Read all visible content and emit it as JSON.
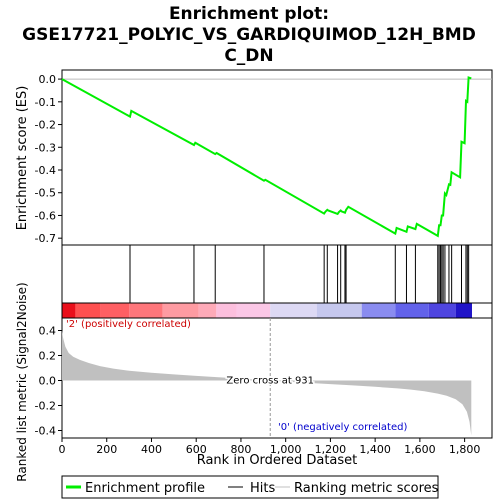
{
  "figure": {
    "title_line1": "Enrichment plot:",
    "title_line2": "GSE17721_POLYIC_VS_GARDIQUIMOD_12H_BMD",
    "title_line3": "C_DN"
  },
  "chart_data": [
    {
      "type": "line",
      "name": "enrichment-profile",
      "ylabel": "Enrichment score (ES)",
      "xlim": [
        0,
        1833
      ],
      "ylim": [
        -0.73,
        0.04
      ],
      "yticks": [
        0.0,
        -0.1,
        -0.2,
        -0.3,
        -0.4,
        -0.5,
        -0.6,
        -0.7
      ],
      "ytick_labels": [
        "0.0",
        "-0.1",
        "-0.2",
        "-0.3",
        "-0.4",
        "-0.5",
        "-0.6",
        "-0.7"
      ],
      "line_color": "#00ee00",
      "series": [
        {
          "name": "Enrichment profile",
          "x": [
            0,
            304,
            310,
            590,
            596,
            685,
            691,
            903,
            909,
            1172,
            1178,
            1186,
            1190,
            1232,
            1238,
            1246,
            1250,
            1265,
            1270,
            1280,
            1490,
            1496,
            1540,
            1546,
            1580,
            1586,
            1680,
            1686,
            1692,
            1698,
            1704,
            1712,
            1718,
            1730,
            1736,
            1742,
            1780,
            1786,
            1800,
            1806,
            1812,
            1818,
            1830
          ],
          "y": [
            0.0,
            -0.165,
            -0.14,
            -0.29,
            -0.28,
            -0.33,
            -0.325,
            -0.447,
            -0.443,
            -0.592,
            -0.583,
            -0.575,
            -0.578,
            -0.593,
            -0.585,
            -0.578,
            -0.582,
            -0.588,
            -0.575,
            -0.562,
            -0.68,
            -0.655,
            -0.672,
            -0.648,
            -0.66,
            -0.637,
            -0.69,
            -0.643,
            -0.643,
            -0.6,
            -0.6,
            -0.503,
            -0.51,
            -0.463,
            -0.465,
            -0.41,
            -0.432,
            -0.276,
            -0.282,
            -0.096,
            -0.1,
            0.007,
            0.003
          ]
        }
      ]
    },
    {
      "type": "scatter",
      "name": "hits",
      "xlim": [
        0,
        1833
      ],
      "hits": [
        304,
        590,
        685,
        903,
        1172,
        1186,
        1232,
        1246,
        1265,
        1270,
        1490,
        1540,
        1580,
        1680,
        1686,
        1692,
        1698,
        1704,
        1712,
        1730,
        1742,
        1786,
        1806,
        1812,
        1818
      ]
    },
    {
      "type": "heatmap",
      "name": "rank-color-bar",
      "xlim": [
        0,
        1833
      ],
      "segments": [
        {
          "x0": 0,
          "x1": 60,
          "color": "#ea0f1b"
        },
        {
          "x0": 60,
          "x1": 170,
          "color": "#fe5050"
        },
        {
          "x0": 170,
          "x1": 300,
          "color": "#fe5f63"
        },
        {
          "x0": 300,
          "x1": 450,
          "color": "#fe767b"
        },
        {
          "x0": 450,
          "x1": 610,
          "color": "#fe9ba2"
        },
        {
          "x0": 610,
          "x1": 690,
          "color": "#feaab8"
        },
        {
          "x0": 690,
          "x1": 780,
          "color": "#fcbfdd"
        },
        {
          "x0": 780,
          "x1": 931,
          "color": "#fbc7e6"
        },
        {
          "x0": 931,
          "x1": 1140,
          "color": "#ddd9f4"
        },
        {
          "x0": 1140,
          "x1": 1340,
          "color": "#c6c8ee"
        },
        {
          "x0": 1340,
          "x1": 1490,
          "color": "#8a8cf0"
        },
        {
          "x0": 1490,
          "x1": 1640,
          "color": "#6262ea"
        },
        {
          "x0": 1640,
          "x1": 1760,
          "color": "#4f45e0"
        },
        {
          "x0": 1760,
          "x1": 1833,
          "color": "#2014c8"
        }
      ]
    },
    {
      "type": "area",
      "name": "ranked-list-metric",
      "ylabel": "Ranked list metric (Signal2Noise)",
      "xlabel": "Rank in Ordered Dataset",
      "xlim": [
        0,
        1833
      ],
      "ylim": [
        -0.46,
        0.5
      ],
      "yticks": [
        0.4,
        0.2,
        0.0,
        -0.2,
        -0.4
      ],
      "ytick_labels": [
        "0.4",
        "0.2",
        "0.0",
        "-0.2",
        "-0.4"
      ],
      "xticks": [
        0,
        200,
        400,
        600,
        800,
        1000,
        1200,
        1400,
        1600,
        1800
      ],
      "xtick_labels": [
        "0",
        "200",
        "400",
        "600",
        "800",
        "1,000",
        "1,200",
        "1,400",
        "1,600",
        "1,800"
      ],
      "fill_color": "#c0c0c0",
      "x": [
        0,
        5,
        15,
        30,
        50,
        80,
        120,
        170,
        230,
        300,
        400,
        500,
        600,
        700,
        800,
        931,
        1000,
        1100,
        1200,
        1300,
        1400,
        1500,
        1560,
        1620,
        1680,
        1720,
        1760,
        1790,
        1810,
        1822,
        1830
      ],
      "values": [
        0.4,
        0.34,
        0.27,
        0.22,
        0.19,
        0.165,
        0.14,
        0.115,
        0.095,
        0.078,
        0.062,
        0.049,
        0.037,
        0.026,
        0.015,
        0.0,
        -0.009,
        -0.019,
        -0.029,
        -0.039,
        -0.05,
        -0.063,
        -0.073,
        -0.086,
        -0.105,
        -0.122,
        -0.15,
        -0.19,
        -0.25,
        -0.33,
        -0.44
      ],
      "zero_cross_label": "Zero cross at 931",
      "zero_cross_x": 931,
      "positive_label": "'2' (positively correlated)",
      "negative_label": "'0' (negatively correlated)",
      "positive_color": "#cc0000",
      "negative_color": "#0000cc"
    }
  ],
  "legend": {
    "items": [
      {
        "label": "Enrichment profile",
        "color": "#00ee00",
        "kind": "line-thick"
      },
      {
        "label": "Hits",
        "color": "#000000",
        "kind": "line-thin"
      },
      {
        "label": "Ranking metric scores",
        "color": "#c0c0c0",
        "kind": "line-thin"
      }
    ]
  }
}
